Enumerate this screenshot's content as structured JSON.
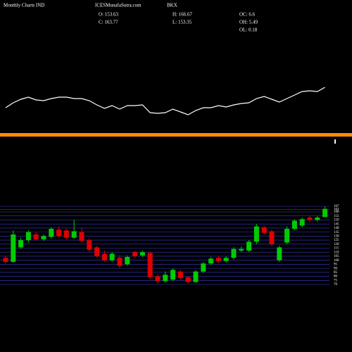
{
  "header": {
    "title": "Monthly Charts IND",
    "site": "ICESMunafaSutra.com",
    "symbol": "BKX",
    "stats": [
      "O: 153.63",
      "H: 166.67",
      "OC: 6.6",
      "C: 163.77",
      "L: 153.35",
      "OH: 5.49",
      "OL: 0.18"
    ]
  },
  "chart_data": [
    {
      "type": "line",
      "color": "#ffffff",
      "ylim": [
        30,
        80
      ],
      "values": [
        47,
        54,
        59,
        62,
        58,
        57,
        60,
        62,
        62,
        60,
        60,
        57,
        51,
        46,
        50,
        45,
        50,
        50,
        51,
        40,
        39,
        40,
        45,
        41,
        37,
        43,
        47,
        47,
        50,
        48,
        51,
        53,
        54,
        60,
        63,
        59,
        55,
        60,
        65,
        70,
        71,
        70,
        76
      ]
    },
    {
      "type": "candlestick",
      "up_color": "#00cc00",
      "down_color": "#e00000",
      "grid": true,
      "ylim": [
        70,
        167
      ],
      "yticks": [
        167,
        163,
        160,
        155,
        150,
        145,
        140,
        135,
        130,
        125,
        120,
        115,
        110,
        105,
        100,
        95,
        90,
        85,
        80,
        75,
        70
      ],
      "open": [
        103,
        98,
        116,
        125,
        132,
        126,
        129,
        138,
        137,
        128,
        135,
        125,
        116,
        108,
        100,
        103,
        95,
        110,
        106,
        109,
        80,
        74,
        76,
        86,
        79,
        73,
        86,
        96,
        103,
        99,
        103,
        112,
        112,
        123,
        141,
        136,
        100,
        122,
        139,
        143,
        153,
        150,
        153.63
      ],
      "high": [
        106,
        137,
        128,
        137,
        135,
        132,
        141,
        142,
        139,
        150,
        140,
        127,
        118,
        112,
        110,
        106,
        106,
        112,
        112,
        111,
        83,
        86,
        90,
        88,
        80,
        88,
        98,
        104,
        105,
        105,
        116,
        117,
        125,
        145,
        143,
        138,
        118,
        142,
        151,
        153,
        155,
        155,
        166.67
      ],
      "low": [
        96,
        97,
        114,
        122,
        124,
        124,
        127,
        128,
        126,
        127,
        122,
        110,
        103,
        98,
        98,
        90,
        93,
        103,
        104,
        76,
        71,
        72,
        74,
        76,
        71,
        72,
        84,
        94,
        97,
        97,
        101,
        110,
        110,
        120,
        132,
        118,
        98,
        120,
        137,
        141,
        147,
        148,
        153.35
      ],
      "close": [
        98,
        132,
        125,
        135,
        126,
        130,
        139,
        130,
        128,
        136,
        124,
        113,
        105,
        100,
        108,
        93,
        104,
        105,
        110,
        79,
        74,
        82,
        88,
        78,
        73,
        86,
        96,
        102,
        99,
        103,
        114,
        114,
        123,
        142,
        134,
        120,
        116,
        139,
        149,
        151,
        150,
        153,
        163.77
      ]
    }
  ]
}
